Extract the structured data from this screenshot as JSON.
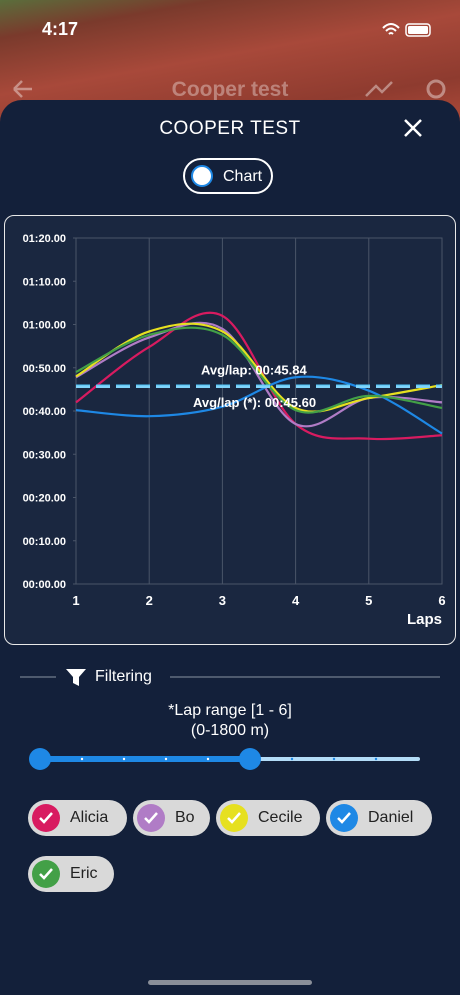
{
  "status_bar": {
    "time": "4:17"
  },
  "header": {
    "title": "Cooper test"
  },
  "modal": {
    "title": "COOPER TEST",
    "toggle_label": "Chart"
  },
  "chart_data": {
    "type": "line",
    "x": [
      1,
      2,
      3,
      4,
      5,
      6
    ],
    "xlim": [
      1,
      6
    ],
    "xticks": [
      1,
      2,
      3,
      4,
      5,
      6
    ],
    "xlabel": "Laps",
    "ylim": [
      0,
      80
    ],
    "yticks": [
      {
        "value": 0,
        "label": "00:00.00"
      },
      {
        "value": 10,
        "label": "00:10.00"
      },
      {
        "value": 20,
        "label": "00:20.00"
      },
      {
        "value": 30,
        "label": "00:30.00"
      },
      {
        "value": 40,
        "label": "00:40.00"
      },
      {
        "value": 50,
        "label": "00:50.00"
      },
      {
        "value": 60,
        "label": "01:00.00"
      },
      {
        "value": 70,
        "label": "01:10.00"
      },
      {
        "value": 80,
        "label": "01:20.00"
      }
    ],
    "grid": "vertical",
    "series": [
      {
        "name": "Alicia",
        "color": "#d81b60",
        "values": [
          42,
          54.8,
          62,
          37,
          33.6,
          34.4
        ]
      },
      {
        "name": "Bo",
        "color": "#b07cc6",
        "values": [
          47.8,
          57,
          59,
          37,
          43,
          42
        ]
      },
      {
        "name": "Cecile",
        "color": "#e6e020",
        "values": [
          48,
          58.4,
          58.4,
          40.7,
          43,
          46
        ]
      },
      {
        "name": "Daniel",
        "color": "#1e88e5",
        "values": [
          40.2,
          38.8,
          41,
          47.8,
          44.7,
          34.8
        ]
      },
      {
        "name": "Eric",
        "color": "#43a047",
        "values": [
          49,
          57.6,
          57.6,
          40.2,
          43.5,
          40.7
        ]
      }
    ],
    "averages": [
      {
        "label": "Avg/lap: 00:45.84",
        "value": 45.84,
        "color": "#4fc3f7"
      },
      {
        "label": "Avg/lap (*): 00:45.60",
        "value": 45.6,
        "color": "#81d4fa"
      }
    ]
  },
  "filtering": {
    "title": "Filtering",
    "range_label": "*Lap range [1 - 6]",
    "range_sub": "(0-1800 m)"
  }
}
